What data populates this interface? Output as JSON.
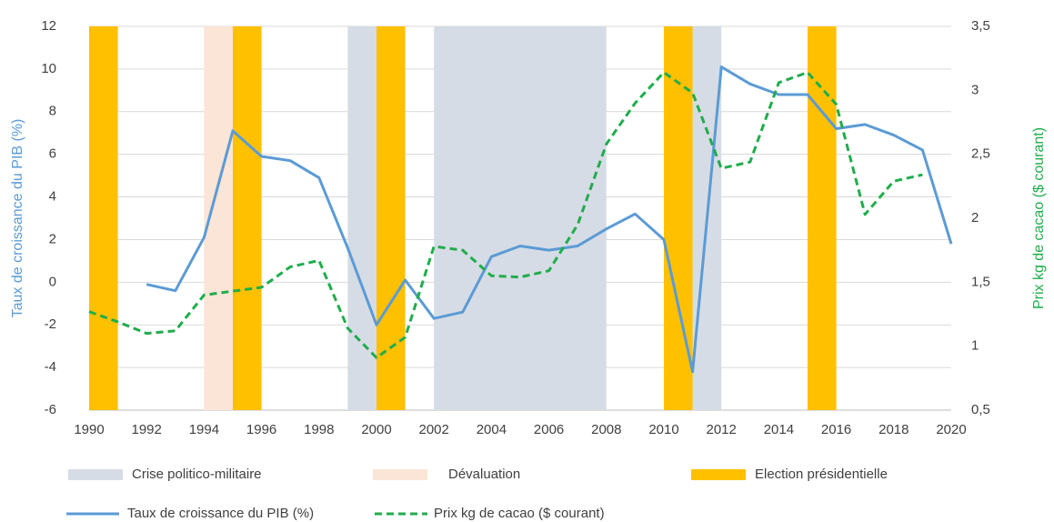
{
  "chart_data": {
    "type": "line",
    "y_label": "Taux de croissance du PIB (%)",
    "y2_label": "Prix kg de cacao ($ courant)",
    "x": [
      1990,
      1991,
      1992,
      1993,
      1994,
      1995,
      1996,
      1997,
      1998,
      1999,
      2000,
      2001,
      2002,
      2003,
      2004,
      2005,
      2006,
      2007,
      2008,
      2009,
      2010,
      2011,
      2012,
      2013,
      2014,
      2015,
      2016,
      2017,
      2018,
      2019,
      2020
    ],
    "xlim": [
      1990,
      2020
    ],
    "xticks": [
      1990,
      1992,
      1994,
      1996,
      1998,
      2000,
      2002,
      2004,
      2006,
      2008,
      2010,
      2012,
      2014,
      2016,
      2018,
      2020
    ],
    "ylim": [
      -6,
      12
    ],
    "yticks": [
      -6,
      -4,
      -2,
      0,
      2,
      4,
      6,
      8,
      10,
      12
    ],
    "y2lim": [
      0.5,
      3.5
    ],
    "y2ticks": [
      {
        "value": 0.5,
        "label": "0,5"
      },
      1,
      {
        "value": 1.5,
        "label": "1,5"
      },
      2,
      {
        "value": 2.5,
        "label": "2,5"
      },
      3,
      {
        "value": 3.5,
        "label": "3,5"
      }
    ],
    "grid": true,
    "bands": [
      {
        "name": "Crise politico-militaire",
        "color": "#d6dce5",
        "ranges": [
          [
            1999,
            2000
          ],
          [
            2002,
            2008
          ],
          [
            2011,
            2012
          ]
        ]
      },
      {
        "name": "Dévaluation",
        "color": "#fbe5d6",
        "ranges": [
          [
            1994,
            1995
          ]
        ]
      },
      {
        "name": "Election présidentielle",
        "color": "#ffc000",
        "ranges": [
          [
            1990,
            1991
          ],
          [
            1995,
            1996
          ],
          [
            2000,
            2001
          ],
          [
            2010,
            2011
          ],
          [
            2015,
            2016
          ]
        ]
      }
    ],
    "series": [
      {
        "name": "Taux de croissance du PIB (%)",
        "color": "#5b9bd5",
        "dash": false,
        "values": [
          null,
          null,
          -0.1,
          -0.4,
          2.1,
          7.1,
          5.9,
          5.7,
          4.9,
          1.6,
          -2.0,
          0.1,
          -1.7,
          -1.4,
          1.2,
          1.7,
          1.5,
          1.7,
          2.5,
          3.2,
          2.0,
          -4.2,
          10.1,
          9.3,
          8.8,
          8.8,
          7.2,
          7.4,
          6.9,
          6.2,
          1.8
        ]
      },
      {
        "name": "Prix kg de cacao ($ courant)",
        "color": "#1fad4b",
        "dash": true,
        "axis": "y2",
        "values": [
          1.27,
          1.19,
          1.1,
          1.12,
          1.4,
          1.43,
          1.46,
          1.62,
          1.67,
          1.14,
          0.91,
          1.07,
          1.78,
          1.75,
          1.55,
          1.54,
          1.59,
          1.95,
          2.58,
          2.9,
          3.14,
          2.98,
          2.39,
          2.44,
          3.06,
          3.14,
          2.89,
          2.03,
          2.29,
          2.34,
          null
        ]
      }
    ]
  }
}
